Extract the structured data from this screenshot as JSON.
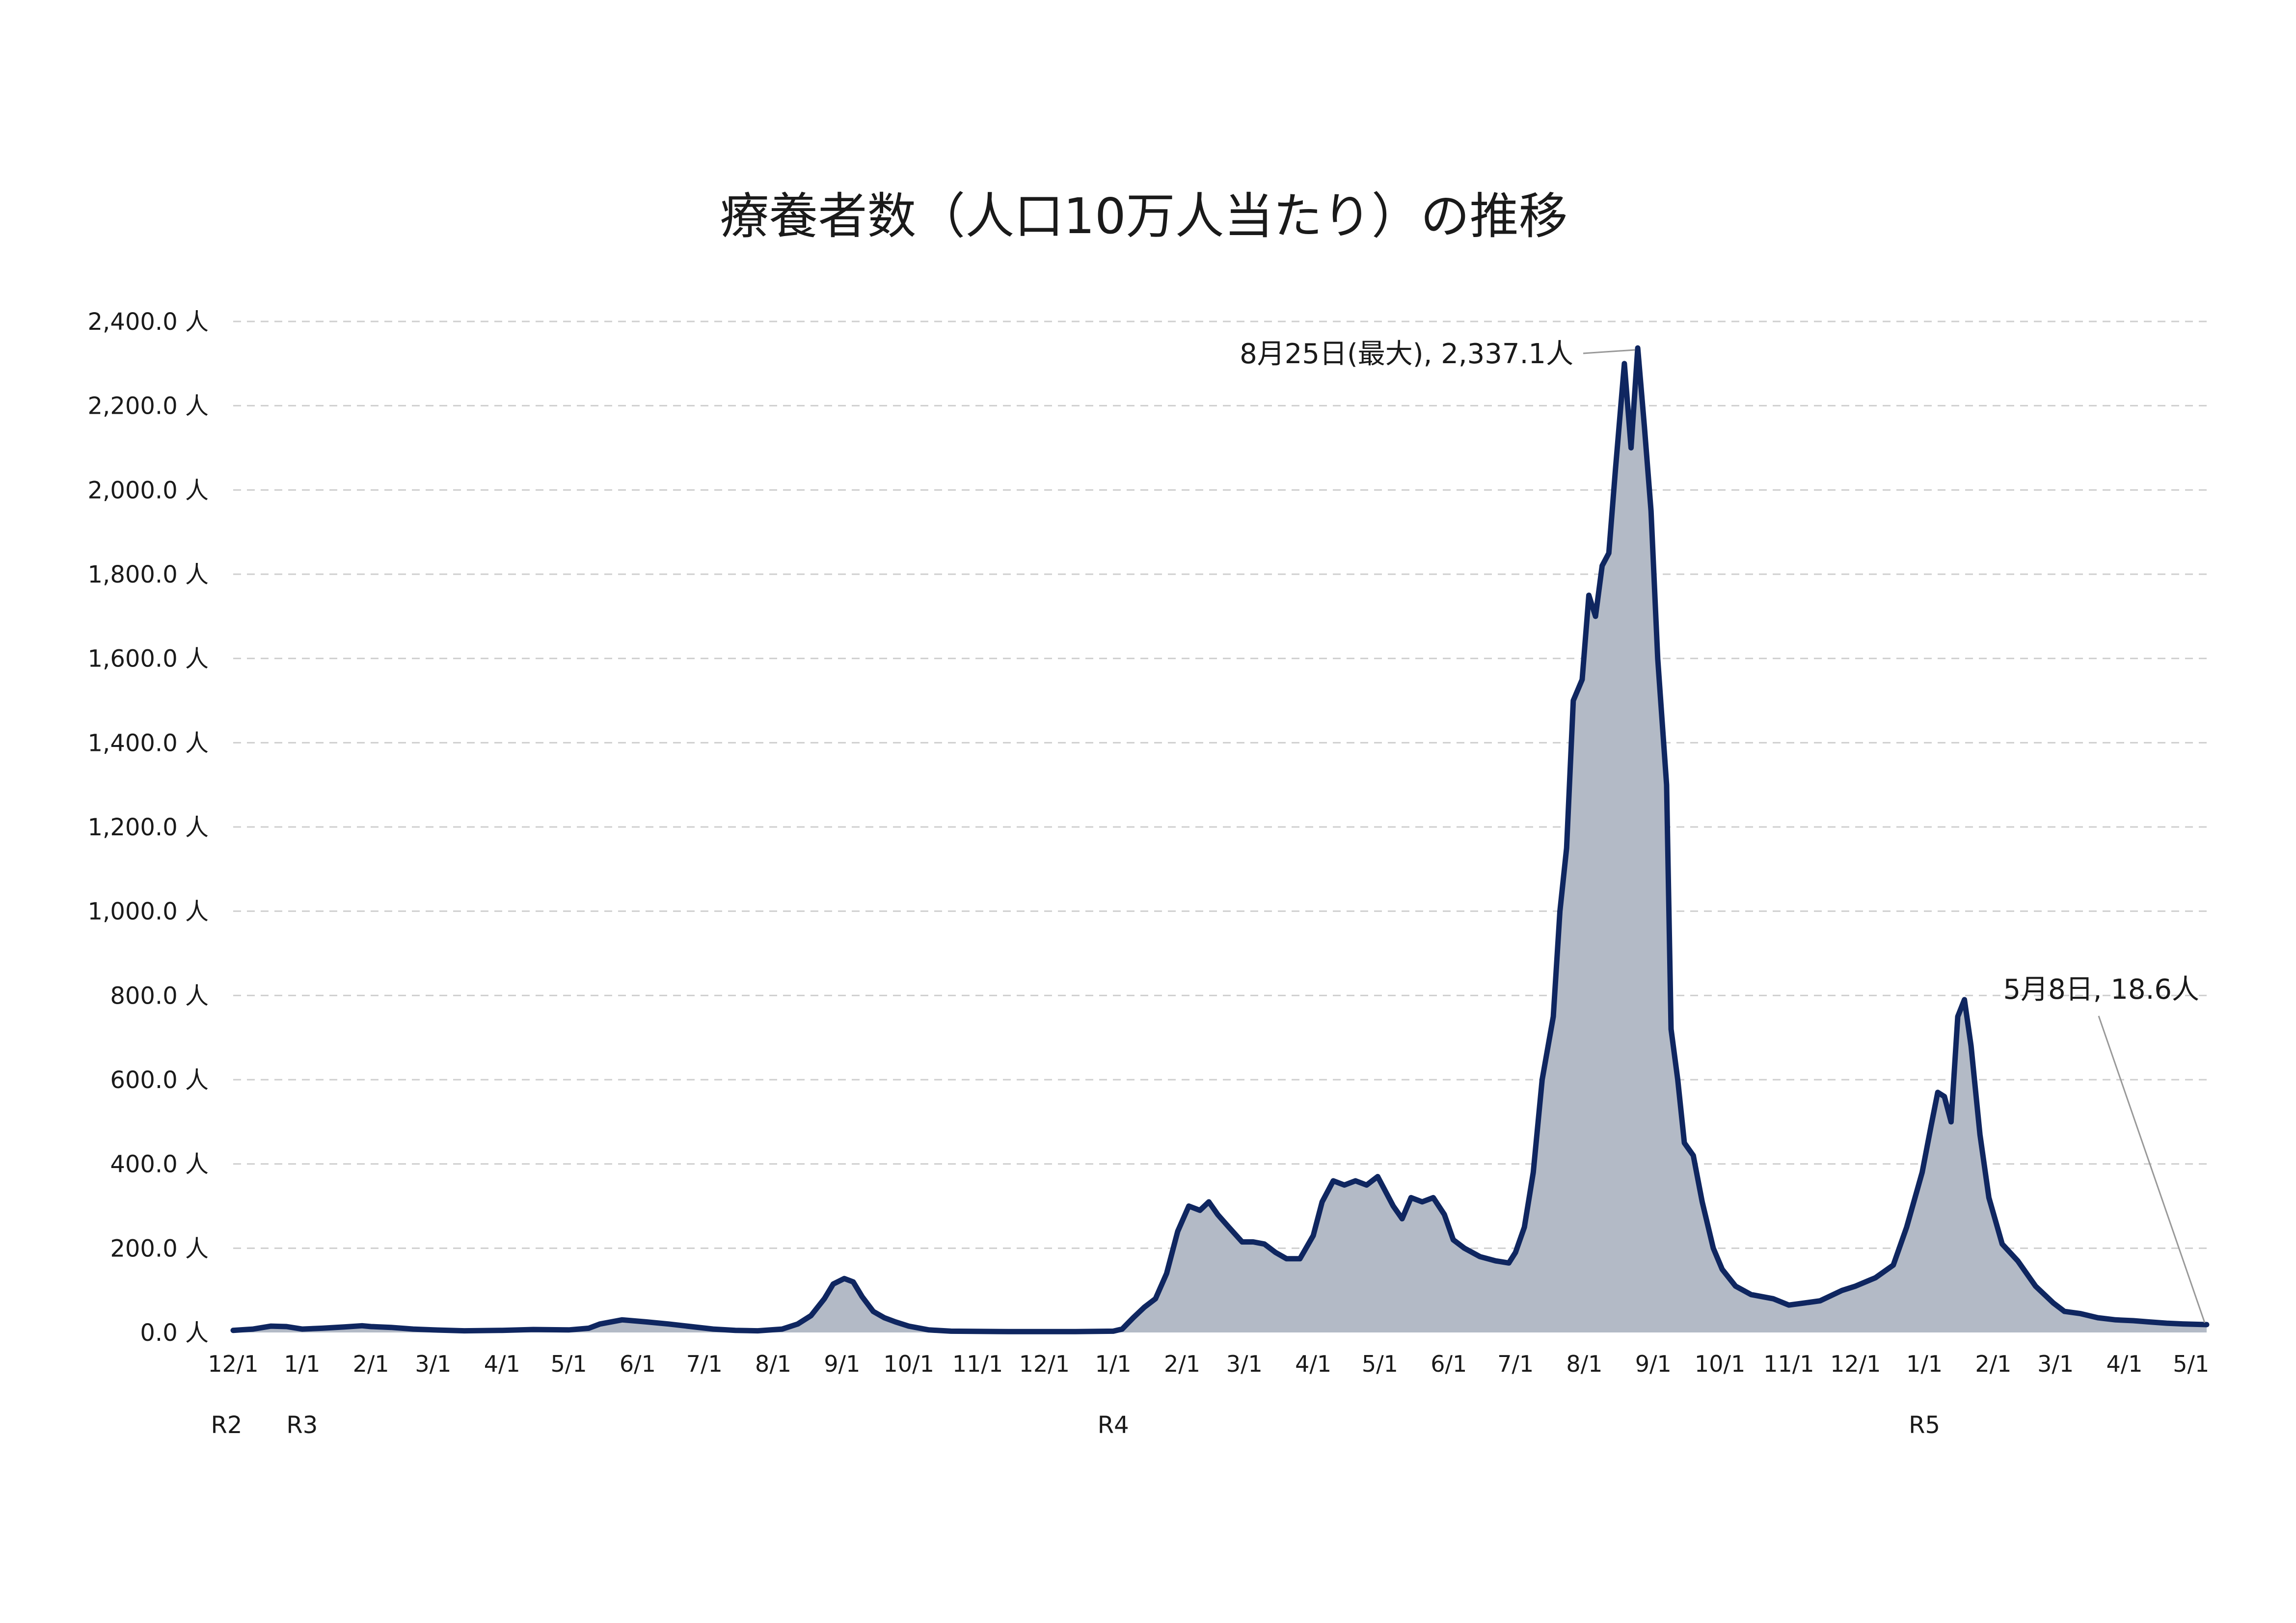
{
  "chart_data": {
    "type": "area",
    "title": "療養者数（人口10万人当たり）の推移",
    "ylim": [
      0,
      2400
    ],
    "y_ticks": [
      "2,400.0 人",
      "2,200.0 人",
      "2,000.0 人",
      "1,800.0 人",
      "1,600.0 人",
      "1,400.0 人",
      "1,200.0 人",
      "1,000.0 人",
      "800.0 人",
      "600.0 人",
      "400.0 人",
      "200.0 人",
      "0.0 人"
    ],
    "y_tick_values": [
      2400,
      2200,
      2000,
      1800,
      1600,
      1400,
      1200,
      1000,
      800,
      600,
      400,
      200,
      0
    ],
    "grid": true,
    "x_start": "2020-12-01",
    "x_end": "2023-05-08",
    "x_ticks": [
      {
        "label": "12/1",
        "date": "2020-12-01"
      },
      {
        "label": "1/1",
        "date": "2021-01-01"
      },
      {
        "label": "2/1",
        "date": "2021-02-01"
      },
      {
        "label": "3/1",
        "date": "2021-03-01"
      },
      {
        "label": "4/1",
        "date": "2021-04-01"
      },
      {
        "label": "5/1",
        "date": "2021-05-01"
      },
      {
        "label": "6/1",
        "date": "2021-06-01"
      },
      {
        "label": "7/1",
        "date": "2021-07-01"
      },
      {
        "label": "8/1",
        "date": "2021-08-01"
      },
      {
        "label": "9/1",
        "date": "2021-09-01"
      },
      {
        "label": "10/1",
        "date": "2021-10-01"
      },
      {
        "label": "11/1",
        "date": "2021-11-01"
      },
      {
        "label": "12/1",
        "date": "2021-12-01"
      },
      {
        "label": "1/1",
        "date": "2022-01-01"
      },
      {
        "label": "2/1",
        "date": "2022-02-01"
      },
      {
        "label": "3/1",
        "date": "2022-03-01"
      },
      {
        "label": "4/1",
        "date": "2022-04-01"
      },
      {
        "label": "5/1",
        "date": "2022-05-01"
      },
      {
        "label": "6/1",
        "date": "2022-06-01"
      },
      {
        "label": "7/1",
        "date": "2022-07-01"
      },
      {
        "label": "8/1",
        "date": "2022-08-01"
      },
      {
        "label": "9/1",
        "date": "2022-09-01"
      },
      {
        "label": "10/1",
        "date": "2022-10-01"
      },
      {
        "label": "11/1",
        "date": "2022-11-01"
      },
      {
        "label": "12/1",
        "date": "2022-12-01"
      },
      {
        "label": "1/1",
        "date": "2023-01-01"
      },
      {
        "label": "2/1",
        "date": "2023-02-01"
      },
      {
        "label": "3/1",
        "date": "2023-03-01"
      },
      {
        "label": "4/1",
        "date": "2023-04-01"
      },
      {
        "label": "5/1",
        "date": "2023-05-01"
      }
    ],
    "era_labels": [
      {
        "label": "R2",
        "date": "2020-11-28"
      },
      {
        "label": "R3",
        "date": "2021-01-01"
      },
      {
        "label": "R4",
        "date": "2022-01-01"
      },
      {
        "label": "R5",
        "date": "2023-01-01"
      }
    ],
    "series": [
      {
        "color": "#0f2660",
        "fill": "#b3bac6",
        "points": [
          [
            "2020-12-01",
            5
          ],
          [
            "2020-12-10",
            8
          ],
          [
            "2020-12-18",
            15
          ],
          [
            "2020-12-25",
            14
          ],
          [
            "2021-01-01",
            8
          ],
          [
            "2021-01-10",
            10
          ],
          [
            "2021-01-20",
            13
          ],
          [
            "2021-01-28",
            16
          ],
          [
            "2021-02-01",
            14
          ],
          [
            "2021-02-10",
            12
          ],
          [
            "2021-02-20",
            8
          ],
          [
            "2021-03-01",
            6
          ],
          [
            "2021-03-15",
            4
          ],
          [
            "2021-04-01",
            5
          ],
          [
            "2021-04-15",
            7
          ],
          [
            "2021-05-01",
            6
          ],
          [
            "2021-05-10",
            10
          ],
          [
            "2021-05-15",
            20
          ],
          [
            "2021-05-25",
            30
          ],
          [
            "2021-06-05",
            25
          ],
          [
            "2021-06-15",
            20
          ],
          [
            "2021-06-25",
            14
          ],
          [
            "2021-07-05",
            8
          ],
          [
            "2021-07-15",
            5
          ],
          [
            "2021-07-25",
            4
          ],
          [
            "2021-08-05",
            8
          ],
          [
            "2021-08-12",
            20
          ],
          [
            "2021-08-18",
            40
          ],
          [
            "2021-08-24",
            80
          ],
          [
            "2021-08-28",
            115
          ],
          [
            "2021-09-02",
            128
          ],
          [
            "2021-09-06",
            120
          ],
          [
            "2021-09-10",
            85
          ],
          [
            "2021-09-15",
            50
          ],
          [
            "2021-09-20",
            35
          ],
          [
            "2021-09-25",
            25
          ],
          [
            "2021-10-01",
            15
          ],
          [
            "2021-10-10",
            6
          ],
          [
            "2021-10-20",
            3
          ],
          [
            "2021-11-15",
            2
          ],
          [
            "2021-12-15",
            2
          ],
          [
            "2022-01-01",
            3
          ],
          [
            "2022-01-05",
            8
          ],
          [
            "2022-01-10",
            35
          ],
          [
            "2022-01-15",
            60
          ],
          [
            "2022-01-20",
            80
          ],
          [
            "2022-01-25",
            140
          ],
          [
            "2022-01-30",
            240
          ],
          [
            "2022-02-04",
            300
          ],
          [
            "2022-02-09",
            290
          ],
          [
            "2022-02-13",
            310
          ],
          [
            "2022-02-17",
            280
          ],
          [
            "2022-02-22",
            250
          ],
          [
            "2022-02-28",
            215
          ],
          [
            "2022-03-05",
            215
          ],
          [
            "2022-03-10",
            210
          ],
          [
            "2022-03-15",
            190
          ],
          [
            "2022-03-20",
            175
          ],
          [
            "2022-03-26",
            175
          ],
          [
            "2022-04-01",
            230
          ],
          [
            "2022-04-05",
            310
          ],
          [
            "2022-04-10",
            360
          ],
          [
            "2022-04-15",
            350
          ],
          [
            "2022-04-20",
            360
          ],
          [
            "2022-04-25",
            350
          ],
          [
            "2022-04-30",
            370
          ],
          [
            "2022-05-03",
            340
          ],
          [
            "2022-05-07",
            300
          ],
          [
            "2022-05-11",
            270
          ],
          [
            "2022-05-15",
            320
          ],
          [
            "2022-05-20",
            310
          ],
          [
            "2022-05-25",
            320
          ],
          [
            "2022-05-30",
            280
          ],
          [
            "2022-06-03",
            220
          ],
          [
            "2022-06-08",
            200
          ],
          [
            "2022-06-15",
            180
          ],
          [
            "2022-06-22",
            170
          ],
          [
            "2022-06-28",
            165
          ],
          [
            "2022-07-01",
            190
          ],
          [
            "2022-07-05",
            250
          ],
          [
            "2022-07-09",
            380
          ],
          [
            "2022-07-13",
            600
          ],
          [
            "2022-07-18",
            750
          ],
          [
            "2022-07-21",
            1000
          ],
          [
            "2022-07-24",
            1150
          ],
          [
            "2022-07-27",
            1500
          ],
          [
            "2022-07-31",
            1550
          ],
          [
            "2022-08-03",
            1750
          ],
          [
            "2022-08-06",
            1700
          ],
          [
            "2022-08-09",
            1820
          ],
          [
            "2022-08-12",
            1850
          ],
          [
            "2022-08-15",
            2050
          ],
          [
            "2022-08-19",
            2300
          ],
          [
            "2022-08-22",
            2100
          ],
          [
            "2022-08-25",
            2337.1
          ],
          [
            "2022-08-28",
            2150
          ],
          [
            "2022-08-31",
            1950
          ],
          [
            "2022-09-03",
            1600
          ],
          [
            "2022-09-07",
            1300
          ],
          [
            "2022-09-09",
            720
          ],
          [
            "2022-09-12",
            600
          ],
          [
            "2022-09-15",
            450
          ],
          [
            "2022-09-19",
            420
          ],
          [
            "2022-09-23",
            310
          ],
          [
            "2022-09-28",
            200
          ],
          [
            "2022-10-02",
            150
          ],
          [
            "2022-10-08",
            110
          ],
          [
            "2022-10-15",
            90
          ],
          [
            "2022-10-25",
            80
          ],
          [
            "2022-11-01",
            65
          ],
          [
            "2022-11-08",
            70
          ],
          [
            "2022-11-15",
            75
          ],
          [
            "2022-11-25",
            100
          ],
          [
            "2022-12-01",
            110
          ],
          [
            "2022-12-10",
            130
          ],
          [
            "2022-12-18",
            160
          ],
          [
            "2022-12-24",
            250
          ],
          [
            "2022-12-31",
            380
          ],
          [
            "2023-01-04",
            490
          ],
          [
            "2023-01-07",
            570
          ],
          [
            "2023-01-10",
            560
          ],
          [
            "2023-01-13",
            500
          ],
          [
            "2023-01-16",
            750
          ],
          [
            "2023-01-19",
            790
          ],
          [
            "2023-01-22",
            680
          ],
          [
            "2023-01-26",
            470
          ],
          [
            "2023-01-30",
            320
          ],
          [
            "2023-02-05",
            210
          ],
          [
            "2023-02-12",
            170
          ],
          [
            "2023-02-20",
            110
          ],
          [
            "2023-02-28",
            70
          ],
          [
            "2023-03-05",
            50
          ],
          [
            "2023-03-12",
            45
          ],
          [
            "2023-03-20",
            35
          ],
          [
            "2023-03-28",
            30
          ],
          [
            "2023-04-05",
            28
          ],
          [
            "2023-04-12",
            25
          ],
          [
            "2023-04-20",
            22
          ],
          [
            "2023-04-28",
            20
          ],
          [
            "2023-05-08",
            18.6
          ]
        ]
      }
    ],
    "annotations": [
      {
        "text": "8月25日(最大), 2,337.1人",
        "date": "2022-08-25",
        "value": 2337.1
      },
      {
        "text": "5月8日, 18.6人",
        "date": "2023-05-08",
        "value": 18.6
      }
    ]
  }
}
